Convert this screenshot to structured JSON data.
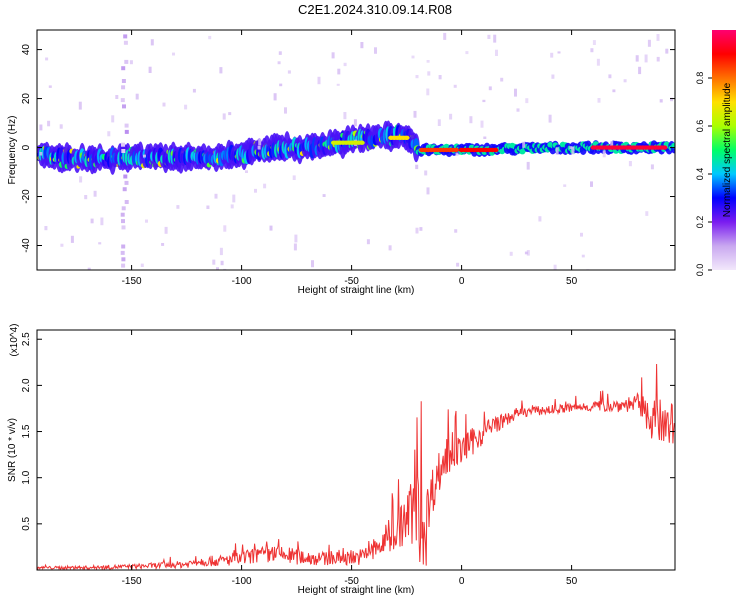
{
  "title": "C2E1.2024.310.09.14.R08",
  "chart_data": [
    {
      "type": "heatmap",
      "xlabel": "Height of straight line (km)",
      "ylabel": "Frequency (Hz)",
      "xlim": [
        -193,
        97
      ],
      "ylim": [
        -50,
        48
      ],
      "xticks": [
        -150,
        -100,
        -50,
        0,
        50
      ],
      "yticks": [
        -40,
        -20,
        0,
        20,
        40
      ],
      "colorbar": {
        "label": "Normalized spectral amplitude",
        "range": [
          0.0,
          1.0
        ],
        "ticks": [
          0.0,
          0.2,
          0.4,
          0.6,
          0.8
        ],
        "tick_labels": [
          "0.0",
          "0.2",
          "0.4",
          "0.6",
          "0.8"
        ],
        "colors": [
          "#f2e8fb",
          "#c9a8f0",
          "#7a1cf0",
          "#0000ff",
          "#00c8ff",
          "#00ff66",
          "#aaff00",
          "#ffe000",
          "#ff7000",
          "#ff0000",
          "#ff0070"
        ]
      },
      "ridge": {
        "x": [
          -193,
          -170,
          -150,
          -130,
          -110,
          -100,
          -90,
          -80,
          -70,
          -60,
          -50,
          -40,
          -30,
          -25,
          -22,
          -20,
          0,
          50,
          97
        ],
        "y": [
          -3,
          -5,
          -4,
          -4,
          -4,
          -3,
          -1,
          0,
          0,
          1,
          3,
          4,
          5,
          4,
          2,
          -1,
          -1,
          0,
          0
        ]
      },
      "high_amplitude_segments": [
        {
          "x": [
            -18,
            -2
          ],
          "y": -1,
          "level": 0.85
        },
        {
          "x": [
            0,
            16
          ],
          "y": -1,
          "level": 0.9
        },
        {
          "x": [
            60,
            93
          ],
          "y": 0,
          "level": 0.95
        },
        {
          "x": [
            -58,
            -45
          ],
          "y": 2,
          "level": 0.65
        },
        {
          "x": [
            -32,
            -25
          ],
          "y": 4,
          "level": 0.7
        }
      ],
      "vertical_stripe_x": [
        -155,
        -153
      ]
    },
    {
      "type": "line",
      "xlabel": "Height of straight line (km)",
      "ylabel": "SNR (10 * v/v)",
      "scale_label": "(x10^4)",
      "xlim": [
        -193,
        97
      ],
      "ylim": [
        0,
        2.6
      ],
      "xticks": [
        -150,
        -100,
        -50,
        0,
        50
      ],
      "yticks": [
        0.5,
        1.0,
        1.5,
        2.0,
        2.5
      ],
      "ytick_labels": [
        "0.5",
        "1.0",
        "1.5",
        "2.0",
        "2.5"
      ],
      "color": "#ee3333",
      "envelope": {
        "x": [
          -193,
          -170,
          -150,
          -125,
          -120,
          -110,
          -100,
          -95,
          -85,
          -75,
          -65,
          -55,
          -45,
          -38,
          -35,
          -30,
          -25,
          -22,
          -19,
          -16,
          -15,
          -12,
          -8,
          -5,
          0,
          5,
          10,
          15,
          20,
          25,
          30,
          40,
          50,
          60,
          70,
          80,
          85,
          90,
          97
        ],
        "base": [
          0.02,
          0.02,
          0.03,
          0.05,
          0.08,
          0.08,
          0.1,
          0.12,
          0.14,
          0.12,
          0.1,
          0.1,
          0.12,
          0.2,
          0.25,
          0.35,
          0.45,
          0.55,
          0.4,
          0.35,
          0.6,
          0.9,
          1.1,
          1.2,
          1.25,
          1.35,
          1.45,
          1.55,
          1.6,
          1.68,
          1.7,
          1.72,
          1.74,
          1.76,
          1.76,
          1.78,
          1.6,
          1.5,
          1.4
        ],
        "amp": [
          0.03,
          0.04,
          0.05,
          0.08,
          0.1,
          0.12,
          0.15,
          0.18,
          0.2,
          0.18,
          0.15,
          0.14,
          0.18,
          0.3,
          0.35,
          0.4,
          0.6,
          0.8,
          1.05,
          0.9,
          0.6,
          0.5,
          0.45,
          0.4,
          0.3,
          0.3,
          0.25,
          0.2,
          0.15,
          0.12,
          0.1,
          0.1,
          0.1,
          0.12,
          0.14,
          0.2,
          0.4,
          0.55,
          0.4
        ]
      }
    }
  ]
}
